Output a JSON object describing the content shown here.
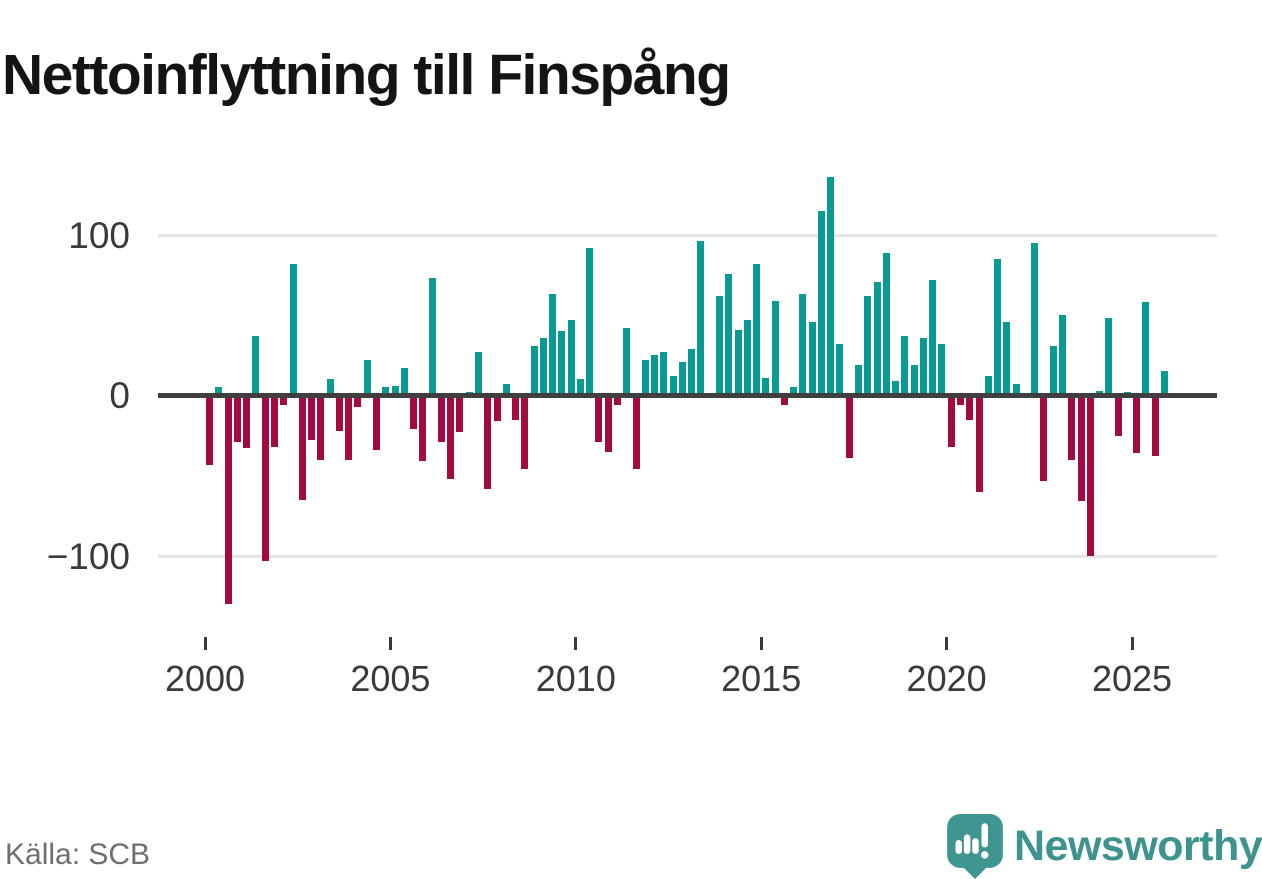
{
  "header": {
    "title": "Nettoinflyttning till Finspång"
  },
  "footer": {
    "source": "Källa: SCB",
    "brand": "Newsworthy"
  },
  "chart_data": {
    "type": "bar",
    "title": "Nettoinflyttning till Finspång",
    "frequency": "quarterly",
    "start_year": 2000,
    "end_year": 2025,
    "values": [
      -43,
      5,
      -130,
      -29,
      -33,
      37,
      -103,
      -32,
      -6,
      82,
      -65,
      -28,
      -40,
      10,
      -22,
      -40,
      -7,
      22,
      -34,
      5,
      6,
      17,
      -21,
      -41,
      73,
      -29,
      -52,
      -23,
      2,
      27,
      -58,
      -16,
      7,
      -15,
      -46,
      31,
      36,
      63,
      40,
      47,
      10,
      92,
      -29,
      -35,
      -6,
      42,
      -46,
      22,
      25,
      27,
      12,
      21,
      29,
      96,
      0,
      62,
      76,
      41,
      47,
      82,
      11,
      59,
      -6,
      5,
      63,
      46,
      115,
      136,
      32,
      -39,
      19,
      62,
      71,
      89,
      9,
      37,
      19,
      36,
      72,
      32,
      -32,
      -6,
      -15,
      -60,
      12,
      85,
      46,
      7,
      0,
      95,
      -53,
      31,
      50,
      -40,
      -66,
      -100,
      3,
      48,
      -25,
      2,
      -36,
      58,
      -38,
      15
    ],
    "y_ticks": [
      {
        "value": 100,
        "label": "100"
      },
      {
        "value": 0,
        "label": "0"
      },
      {
        "value": -100,
        "label": "−100"
      }
    ],
    "x_ticks": [
      2000,
      2005,
      2010,
      2015,
      2020,
      2025
    ],
    "ylim": [
      -140,
      150
    ],
    "grid": "horizontal-only",
    "legend": "none",
    "colors": {
      "positive": "#099a94",
      "negative": "#a30b3f",
      "zero_line": "#3f3f3f",
      "gridline": "#e4e4e4",
      "axis_text": "#3a3a3a",
      "brand_teal": "#3e938e"
    }
  }
}
